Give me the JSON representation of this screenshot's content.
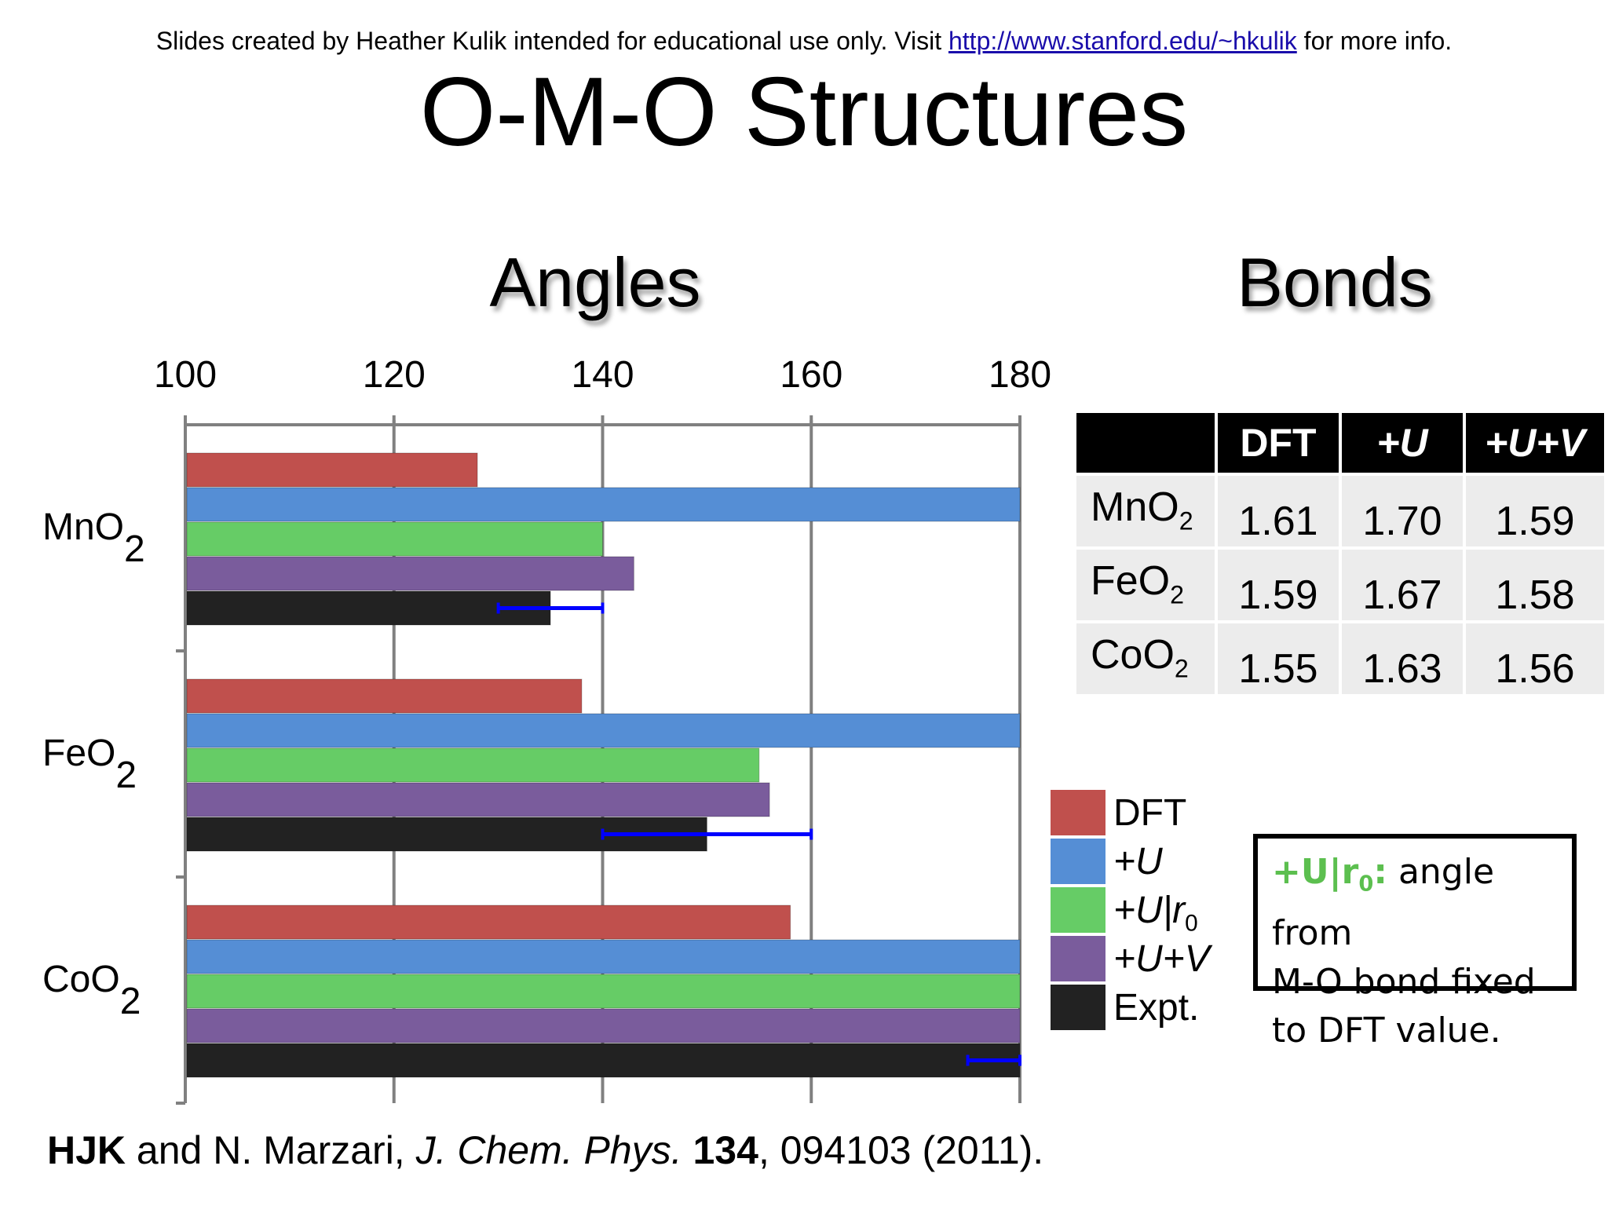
{
  "header": {
    "credit_prefix": "Slides created by Heather Kulik intended for educational use only. Visit",
    "credit_link": "http://www.stanford.edu/~hkulik",
    "credit_suffix": "for more info."
  },
  "slide_title": "O-M-O Structures",
  "angles_title": "Angles",
  "bonds_title": "Bonds",
  "chart_data": {
    "type": "bar",
    "orientation": "horizontal",
    "categories": [
      "MnO",
      "FeO",
      "CoO"
    ],
    "category_subscript": "2",
    "xlim": [
      100,
      180
    ],
    "xticks": [
      "100",
      "120",
      "140",
      "160",
      "180"
    ],
    "grid": true,
    "series": [
      {
        "name": "DFT",
        "color": "#c0504d",
        "values": [
          128,
          138,
          158
        ]
      },
      {
        "name": "+U",
        "color": "#558ed5",
        "values": [
          180,
          180,
          180
        ]
      },
      {
        "name": "+U|r0",
        "color": "#66cc66",
        "values": [
          140,
          155,
          180
        ]
      },
      {
        "name": "+U+V",
        "color": "#7a5c9c",
        "values": [
          143,
          156,
          180
        ]
      },
      {
        "name": "Expt.",
        "color": "#222222",
        "values": [
          135,
          150,
          180
        ]
      }
    ],
    "expt_error_ranges": [
      [
        130,
        140
      ],
      [
        140,
        160
      ],
      [
        175,
        180
      ]
    ],
    "error_bar_color": "#0000ff"
  },
  "legend": {
    "items": [
      {
        "main": "DFT",
        "sub": "",
        "italic": false,
        "color": "#c0504d"
      },
      {
        "main": "+U",
        "sub": "",
        "italic": true,
        "color": "#558ed5"
      },
      {
        "main": "+U|r",
        "sub": "0",
        "italic": true,
        "color": "#66cc66"
      },
      {
        "main": "+U+V",
        "sub": "",
        "italic": true,
        "color": "#7a5c9c"
      },
      {
        "main": "Expt.",
        "sub": "",
        "italic": false,
        "color": "#222222"
      }
    ]
  },
  "note": {
    "term": "+U|r",
    "term_sub": "0",
    "colon": ":",
    "line1_rest": " angle from",
    "line2": "M-O bond fixed",
    "line3": "to DFT value."
  },
  "bonds_table": {
    "headers": [
      "",
      "DFT",
      "+U",
      "+U+V"
    ],
    "rows": [
      {
        "label": "MnO",
        "sub": "2",
        "values": [
          "1.61",
          "1.70",
          "1.59"
        ]
      },
      {
        "label": "FeO",
        "sub": "2",
        "values": [
          "1.59",
          "1.67",
          "1.58"
        ]
      },
      {
        "label": "CoO",
        "sub": "2",
        "values": [
          "1.55",
          "1.63",
          "1.56"
        ]
      }
    ]
  },
  "citation": {
    "authors_bold": "HJK",
    "authors_rest": " and N. Marzari, ",
    "journal": "J. Chem. Phys.",
    "volume": "134",
    "pages_year": ", 094103 (2011)."
  }
}
